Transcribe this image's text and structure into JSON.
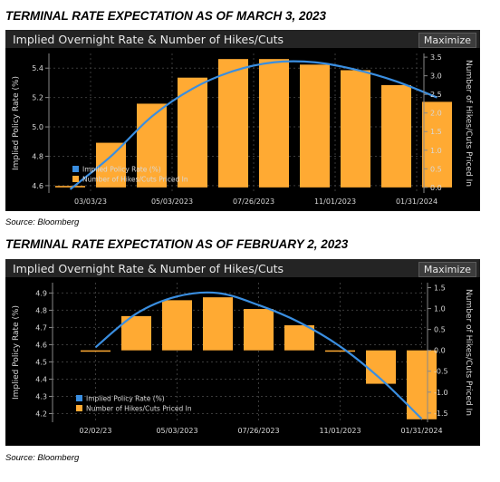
{
  "panels": [
    {
      "heading": "TERMINAL RATE EXPECTATION AS OF MARCH 3, 2023",
      "title": "Implied Overnight Rate & Number of Hikes/Cuts",
      "maximize_label": "Maximize",
      "source": "Source: Bloomberg"
    },
    {
      "heading": "TERMINAL RATE EXPECTATION AS OF FEBRUARY 2, 2023",
      "title": "Implied Overnight Rate & Number of Hikes/Cuts",
      "maximize_label": "Maximize",
      "source": "Source: Bloomberg"
    }
  ],
  "colors": {
    "bar": "#ffaa33",
    "line": "#3a8ee0",
    "axis_text": "#d8d8d8",
    "gridline": "#3a3a3a",
    "background": "#000000"
  },
  "chart_data": [
    {
      "type": "bar",
      "combo": "bar + line (dual axis)",
      "title": "Implied Overnight Rate & Number of Hikes/Cuts",
      "ylabel_left": "Implied Policy Rate (%)",
      "ylabel_right": "Number of Hikes/Cuts Priced In",
      "yticks_left": [
        "4.6",
        "4.8",
        "5.0",
        "5.2",
        "5.4"
      ],
      "ylim_left": [
        4.55,
        5.5
      ],
      "yticks_right": [
        "0.0",
        "0.5",
        "1.0",
        "1.5",
        "2.0",
        "2.5",
        "3.0",
        "3.5"
      ],
      "ylim_right": [
        -0.15,
        3.6
      ],
      "xtick_labels": [
        "03/03/23",
        "05/03/2023",
        "07/26/2023",
        "11/01/2023",
        "01/31/2024"
      ],
      "x_positions": [
        0,
        1,
        2,
        3,
        4,
        5,
        6,
        7,
        8,
        9
      ],
      "xtick_positions": [
        0.5,
        2.5,
        4.5,
        6.5,
        8.5
      ],
      "grid": true,
      "legend_position": "bottom-left",
      "series": [
        {
          "name": "Implied Policy Rate (%)",
          "kind": "line",
          "axis": "left",
          "values": [
            4.575,
            4.8,
            5.07,
            5.26,
            5.38,
            5.44,
            5.44,
            5.39,
            5.31,
            5.2
          ]
        },
        {
          "name": "Number of Hikes/Cuts Priced In",
          "kind": "bar",
          "axis": "right",
          "values": [
            0.04,
            1.2,
            2.25,
            2.95,
            3.45,
            3.45,
            3.3,
            3.15,
            2.75,
            2.3
          ]
        }
      ]
    },
    {
      "type": "bar",
      "combo": "bar + line (dual axis)",
      "title": "Implied Overnight Rate & Number of Hikes/Cuts",
      "ylabel_left": "Implied Policy Rate (%)",
      "ylabel_right": "Number of Hikes/Cuts Priced In",
      "yticks_left": [
        "4.2",
        "4.3",
        "4.4",
        "4.5",
        "4.6",
        "4.7",
        "4.8",
        "4.9"
      ],
      "ylim_left": [
        4.15,
        4.96
      ],
      "yticks_right": [
        "-1.5",
        "-1.0",
        "-0.5",
        "0.0",
        "0.5",
        "1.0",
        "1.5"
      ],
      "ylim_right": [
        -1.72,
        1.62
      ],
      "xtick_labels": [
        "02/02/23",
        "05/03/2023",
        "07/26/2023",
        "11/01/2023",
        "01/31/2024"
      ],
      "x_positions": [
        0,
        1,
        2,
        3,
        4,
        5,
        6,
        7,
        8
      ],
      "xtick_positions": [
        0,
        2,
        4,
        6,
        8
      ],
      "grid": true,
      "legend_position": "bottom-left",
      "series": [
        {
          "name": "Implied Policy Rate (%)",
          "kind": "line",
          "axis": "left",
          "values": [
            4.585,
            4.78,
            4.88,
            4.9,
            4.83,
            4.73,
            4.59,
            4.4,
            4.17
          ]
        },
        {
          "name": "Number of Hikes/Cuts Priced In",
          "kind": "bar",
          "axis": "right",
          "values": [
            0.0,
            0.82,
            1.2,
            1.27,
            0.99,
            0.6,
            -0.02,
            -0.8,
            -1.65
          ]
        }
      ]
    }
  ]
}
